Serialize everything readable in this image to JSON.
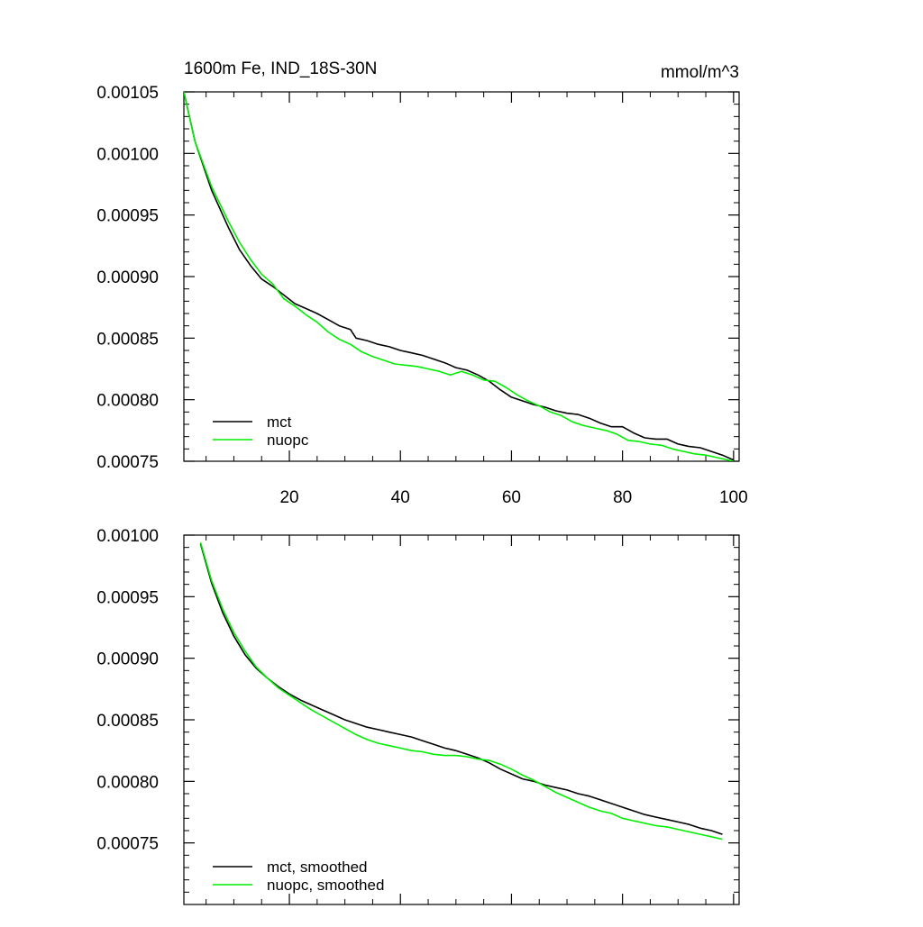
{
  "figure": {
    "title_left": "1600m Fe, IND_18S-30N",
    "title_right": "mmol/m^3"
  },
  "colors": {
    "mct": "#000000",
    "nuopc": "#00ee00",
    "axis": "#000000",
    "background": "#ffffff"
  },
  "chart_data": [
    {
      "type": "line",
      "title": "1600m Fe, IND_18S-30N",
      "units": "mmol/m^3",
      "xlabel": "",
      "ylabel": "",
      "xlim": [
        1,
        101
      ],
      "ylim": [
        0.00075,
        0.00105
      ],
      "xticks": [
        20,
        40,
        60,
        80,
        100
      ],
      "xtick_labels": [
        "20",
        "40",
        "60",
        "80",
        "100"
      ],
      "yticks": [
        0.00075,
        0.0008,
        0.00085,
        0.0009,
        0.00095,
        0.001,
        0.00105
      ],
      "ytick_labels": [
        "0.00075",
        "0.00080",
        "0.00085",
        "0.00090",
        "0.00095",
        "0.00100",
        "0.00105"
      ],
      "grid": false,
      "legend_position": "bottom-left",
      "series": [
        {
          "name": "mct",
          "color": "#000000",
          "x": [
            1,
            3,
            6,
            9,
            11,
            13,
            15,
            17,
            19,
            21,
            23,
            25,
            27,
            29,
            31,
            32,
            34,
            36,
            38,
            40,
            42,
            44,
            46,
            48,
            50,
            52,
            54,
            56,
            58,
            60,
            62,
            64,
            66,
            68,
            70,
            72,
            74,
            76,
            78,
            80,
            82,
            84,
            86,
            88,
            90,
            92,
            94,
            96,
            98,
            100
          ],
          "values": [
            0.00105,
            0.00101,
            0.00097,
            0.00094,
            0.000922,
            0.000909,
            0.000898,
            0.000892,
            0.000885,
            0.000878,
            0.000874,
            0.00087,
            0.000865,
            0.00086,
            0.000857,
            0.00085,
            0.000848,
            0.000845,
            0.000843,
            0.00084,
            0.000838,
            0.000836,
            0.000833,
            0.00083,
            0.000826,
            0.000824,
            0.00082,
            0.000815,
            0.000808,
            0.000802,
            0.000799,
            0.000796,
            0.000794,
            0.000791,
            0.000789,
            0.000788,
            0.000785,
            0.000781,
            0.000778,
            0.000778,
            0.000773,
            0.000769,
            0.000768,
            0.000768,
            0.000764,
            0.000762,
            0.000761,
            0.000758,
            0.000755,
            0.000751
          ]
        },
        {
          "name": "nuopc",
          "color": "#00ee00",
          "x": [
            1,
            3,
            6,
            9,
            11,
            13,
            15,
            17,
            19,
            21,
            23,
            25,
            27,
            29,
            31,
            33,
            35,
            37,
            39,
            41,
            43,
            45,
            47,
            49,
            51,
            53,
            55,
            57,
            59,
            61,
            63,
            65,
            67,
            69,
            71,
            73,
            75,
            77,
            79,
            81,
            83,
            85,
            87,
            89,
            91,
            93,
            95,
            97,
            99,
            100
          ],
          "values": [
            0.00105,
            0.00101,
            0.000973,
            0.000945,
            0.000928,
            0.000914,
            0.000902,
            0.000894,
            0.000882,
            0.000876,
            0.000869,
            0.000863,
            0.000855,
            0.000849,
            0.000845,
            0.000839,
            0.000835,
            0.000832,
            0.000829,
            0.000828,
            0.000827,
            0.000825,
            0.000823,
            0.00082,
            0.000823,
            0.00082,
            0.000816,
            0.000815,
            0.00081,
            0.000804,
            0.000799,
            0.000795,
            0.00079,
            0.000787,
            0.000782,
            0.000779,
            0.000777,
            0.000775,
            0.000772,
            0.000767,
            0.000766,
            0.000764,
            0.000763,
            0.00076,
            0.000758,
            0.000756,
            0.000755,
            0.000753,
            0.000751,
            0.00075
          ]
        }
      ],
      "legend": [
        "mct",
        "nuopc"
      ]
    },
    {
      "type": "line",
      "title": "",
      "xlabel": "",
      "ylabel": "",
      "xlim": [
        1,
        101
      ],
      "ylim": [
        0.0007,
        0.001
      ],
      "xticks": [
        20,
        40,
        60,
        80,
        100
      ],
      "xtick_labels": [],
      "yticks": [
        0.00075,
        0.0008,
        0.00085,
        0.0009,
        0.00095,
        0.001
      ],
      "ytick_labels": [
        "0.00075",
        "0.00080",
        "0.00085",
        "0.00090",
        "0.00095",
        "0.00100"
      ],
      "grid": false,
      "legend_position": "bottom-left",
      "series": [
        {
          "name": "mct, smoothed",
          "color": "#000000",
          "x": [
            4,
            6,
            8,
            10,
            12,
            14,
            16,
            18,
            20,
            22,
            24,
            26,
            28,
            30,
            32,
            34,
            36,
            38,
            40,
            42,
            44,
            46,
            48,
            50,
            52,
            54,
            56,
            58,
            60,
            62,
            64,
            66,
            68,
            70,
            72,
            74,
            76,
            78,
            80,
            82,
            84,
            86,
            88,
            90,
            92,
            94,
            96,
            98
          ],
          "values": [
            0.000993,
            0.000961,
            0.000937,
            0.000918,
            0.000903,
            0.000892,
            0.000884,
            0.000877,
            0.000871,
            0.000866,
            0.000862,
            0.000858,
            0.000854,
            0.00085,
            0.000847,
            0.000844,
            0.000842,
            0.00084,
            0.000838,
            0.000836,
            0.000833,
            0.00083,
            0.000827,
            0.000825,
            0.000822,
            0.000819,
            0.000815,
            0.00081,
            0.000806,
            0.000802,
            0.0008,
            0.000797,
            0.000795,
            0.000793,
            0.00079,
            0.000788,
            0.000785,
            0.000782,
            0.000779,
            0.000776,
            0.000773,
            0.000771,
            0.000769,
            0.000767,
            0.000765,
            0.000762,
            0.00076,
            0.000757
          ]
        },
        {
          "name": "nuopc, smoothed",
          "color": "#00ee00",
          "x": [
            4,
            6,
            8,
            10,
            12,
            14,
            16,
            18,
            20,
            22,
            24,
            26,
            28,
            30,
            32,
            34,
            36,
            38,
            40,
            42,
            44,
            46,
            48,
            50,
            52,
            54,
            56,
            58,
            60,
            62,
            64,
            66,
            68,
            70,
            72,
            74,
            76,
            78,
            80,
            82,
            84,
            86,
            88,
            90,
            92,
            94,
            96,
            98
          ],
          "values": [
            0.000994,
            0.000963,
            0.00094,
            0.000921,
            0.000906,
            0.000893,
            0.000884,
            0.000876,
            0.00087,
            0.000864,
            0.000858,
            0.000853,
            0.000848,
            0.000843,
            0.000838,
            0.000834,
            0.000831,
            0.000829,
            0.000827,
            0.000825,
            0.000824,
            0.000822,
            0.000821,
            0.000821,
            0.00082,
            0.000818,
            0.000817,
            0.000814,
            0.00081,
            0.000805,
            0.000801,
            0.000796,
            0.000791,
            0.000787,
            0.000783,
            0.000779,
            0.000776,
            0.000774,
            0.00077,
            0.000768,
            0.000766,
            0.000764,
            0.000763,
            0.000761,
            0.000759,
            0.000757,
            0.000755,
            0.000753
          ]
        }
      ],
      "legend": [
        "mct, smoothed",
        "nuopc, smoothed"
      ]
    }
  ]
}
